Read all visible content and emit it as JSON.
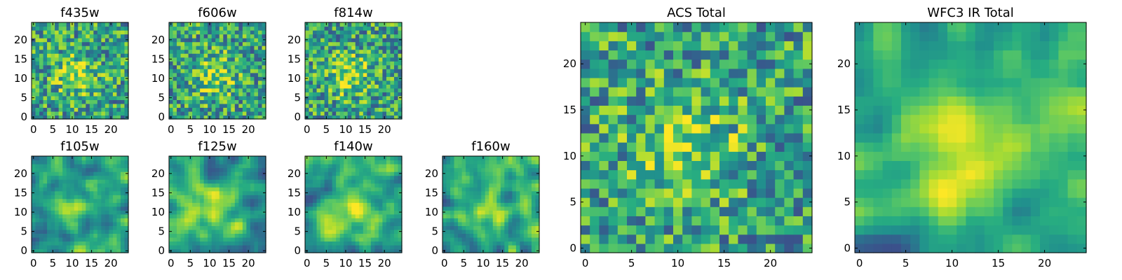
{
  "chart_data": {
    "type": "heatmap",
    "colormap": "viridis",
    "grid_size": 25,
    "panels": [
      {
        "id": "f435w",
        "title": "f435w",
        "xticks": [
          0,
          5,
          10,
          15,
          20
        ],
        "yticks": [
          0,
          5,
          10,
          15,
          20
        ],
        "pattern": "noisy",
        "seed": 11
      },
      {
        "id": "f606w",
        "title": "f606w",
        "xticks": [
          0,
          5,
          10,
          15,
          20
        ],
        "yticks": [
          0,
          5,
          10,
          15,
          20
        ],
        "pattern": "noisy",
        "seed": 23
      },
      {
        "id": "f814w",
        "title": "f814w",
        "xticks": [
          0,
          5,
          10,
          15,
          20
        ],
        "yticks": [
          0,
          5,
          10,
          15,
          20
        ],
        "pattern": "noisy",
        "seed": 37
      },
      {
        "id": "f105w",
        "title": "f105w",
        "xticks": [
          0,
          5,
          10,
          15,
          20
        ],
        "yticks": [
          0,
          5,
          10,
          15,
          20
        ],
        "pattern": "smooth",
        "seed": 41
      },
      {
        "id": "f125w",
        "title": "f125w",
        "xticks": [
          0,
          5,
          10,
          15,
          20
        ],
        "yticks": [
          0,
          5,
          10,
          15,
          20
        ],
        "pattern": "smooth",
        "seed": 53
      },
      {
        "id": "f140w",
        "title": "f140w",
        "xticks": [
          0,
          5,
          10,
          15,
          20
        ],
        "yticks": [
          0,
          5,
          10,
          15,
          20
        ],
        "pattern": "smooth",
        "seed": 67
      },
      {
        "id": "f160w",
        "title": "f160w",
        "xticks": [
          0,
          5,
          10,
          15,
          20
        ],
        "yticks": [
          0,
          5,
          10,
          15,
          20
        ],
        "pattern": "smooth",
        "seed": 79
      },
      {
        "id": "acs_total",
        "title": "ACS Total",
        "xticks": [
          0,
          5,
          10,
          15,
          20
        ],
        "yticks": [
          0,
          5,
          10,
          15,
          20
        ],
        "pattern": "noisy",
        "seed": 83
      },
      {
        "id": "wfc3_ir_total",
        "title": "WFC3 IR Total",
        "xticks": [
          0,
          5,
          10,
          15,
          20
        ],
        "yticks": [
          0,
          5,
          10,
          15,
          20
        ],
        "pattern": "smooth",
        "seed": 97
      }
    ]
  }
}
